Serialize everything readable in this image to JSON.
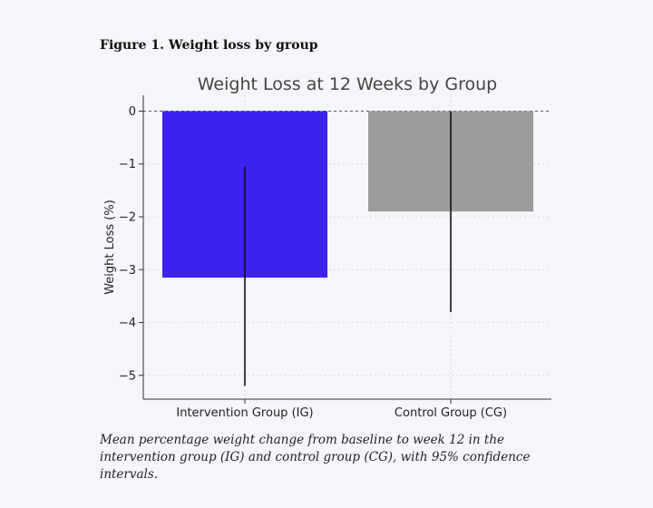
{
  "figure": {
    "label": "Figure 1. Weight loss by group",
    "caption": "Mean percentage weight change from baseline to week 12 in the intervention group (IG) and control group (CG), with 95% confidence intervals."
  },
  "chart_data": {
    "type": "bar",
    "title": "Weight Loss at 12 Weeks by Group",
    "xlabel": "",
    "ylabel": "Weight Loss (%)",
    "categories": [
      "Intervention Group (IG)",
      "Control Group (CG)"
    ],
    "values": [
      -3.15,
      -1.9
    ],
    "ci_lower": [
      -5.2,
      -3.8
    ],
    "ci_upper": [
      -1.05,
      0.0
    ],
    "colors": [
      "#3c23f0",
      "#9c9c9c"
    ],
    "ylim": [
      -5.45,
      0.3
    ],
    "yticks": [
      0,
      -1,
      -2,
      -3,
      -4,
      -5
    ],
    "ytick_labels": [
      "0",
      "−1",
      "−2",
      "−3",
      "−4",
      "−5"
    ],
    "grid": true,
    "zero_line": "dashed"
  }
}
